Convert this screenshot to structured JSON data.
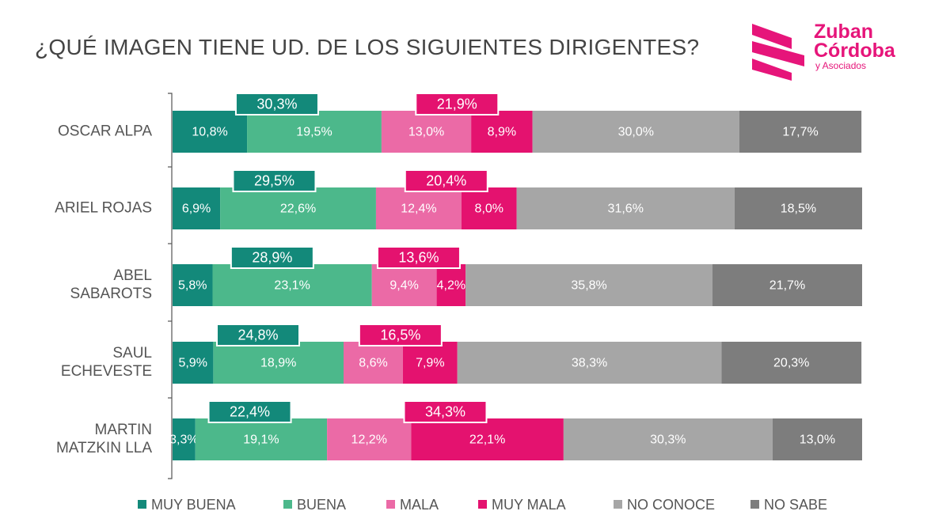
{
  "header": {
    "title": "¿QUÉ IMAGEN TIENE UD. DE LOS SIGUIENTES DIRIGENTES?"
  },
  "logo": {
    "line1": "Zuban",
    "line2": "Córdoba",
    "line3": "y Asociados",
    "color": "#e6157a"
  },
  "chart_data": {
    "type": "bar",
    "orientation": "horizontal",
    "stacked": true,
    "categories": [
      [
        "OSCAR ALPA"
      ],
      [
        "ARIEL ROJAS"
      ],
      [
        "ABEL",
        "SABAROTS"
      ],
      [
        "SAUL",
        "ECHEVESTE"
      ],
      [
        "MARTIN",
        "MATZKIN LLA"
      ]
    ],
    "series": [
      {
        "name": "MUY BUENA",
        "color": "#13897a",
        "values": [
          10.8,
          6.9,
          5.8,
          5.9,
          3.3
        ]
      },
      {
        "name": "BUENA",
        "color": "#4cb88b",
        "values": [
          19.5,
          22.6,
          23.1,
          18.9,
          19.1
        ]
      },
      {
        "name": "MALA",
        "color": "#eb6aa6",
        "values": [
          13.0,
          12.4,
          9.4,
          8.6,
          12.2
        ]
      },
      {
        "name": "MUY MALA",
        "color": "#e4126f",
        "values": [
          8.9,
          8.0,
          4.2,
          7.9,
          22.1
        ]
      },
      {
        "name": "NO CONOCE",
        "color": "#a6a6a6",
        "values": [
          30.0,
          31.6,
          35.8,
          38.3,
          30.3
        ]
      },
      {
        "name": "NO SABE",
        "color": "#7d7d7d",
        "values": [
          17.7,
          18.5,
          21.7,
          20.3,
          13.0
        ]
      }
    ],
    "value_labels": [
      [
        "10,8%",
        "19,5%",
        "13,0%",
        "8,9%",
        "30,0%",
        "17,7%"
      ],
      [
        "6,9%",
        "22,6%",
        "12,4%",
        "8,0%",
        "31,6%",
        "18,5%"
      ],
      [
        "5,8%",
        "23,1%",
        "9,4%",
        "4,2%",
        "35,8%",
        "21,7%"
      ],
      [
        "5,9%",
        "18,9%",
        "8,6%",
        "7,9%",
        "38,3%",
        "20,3%"
      ],
      [
        "3,3%",
        "19,1%",
        "12,2%",
        "22,1%",
        "30,3%",
        "13,0%"
      ]
    ],
    "positive_totals": [
      "30,3%",
      "29,5%",
      "28,9%",
      "24,8%",
      "22,4%"
    ],
    "negative_totals": [
      "21,9%",
      "20,4%",
      "13,6%",
      "16,5%",
      "34,3%"
    ],
    "positive_total_color": "#13897a",
    "negative_total_color": "#e4126f",
    "xlim": [
      0,
      100
    ],
    "grid": false,
    "legend_position": "bottom"
  }
}
